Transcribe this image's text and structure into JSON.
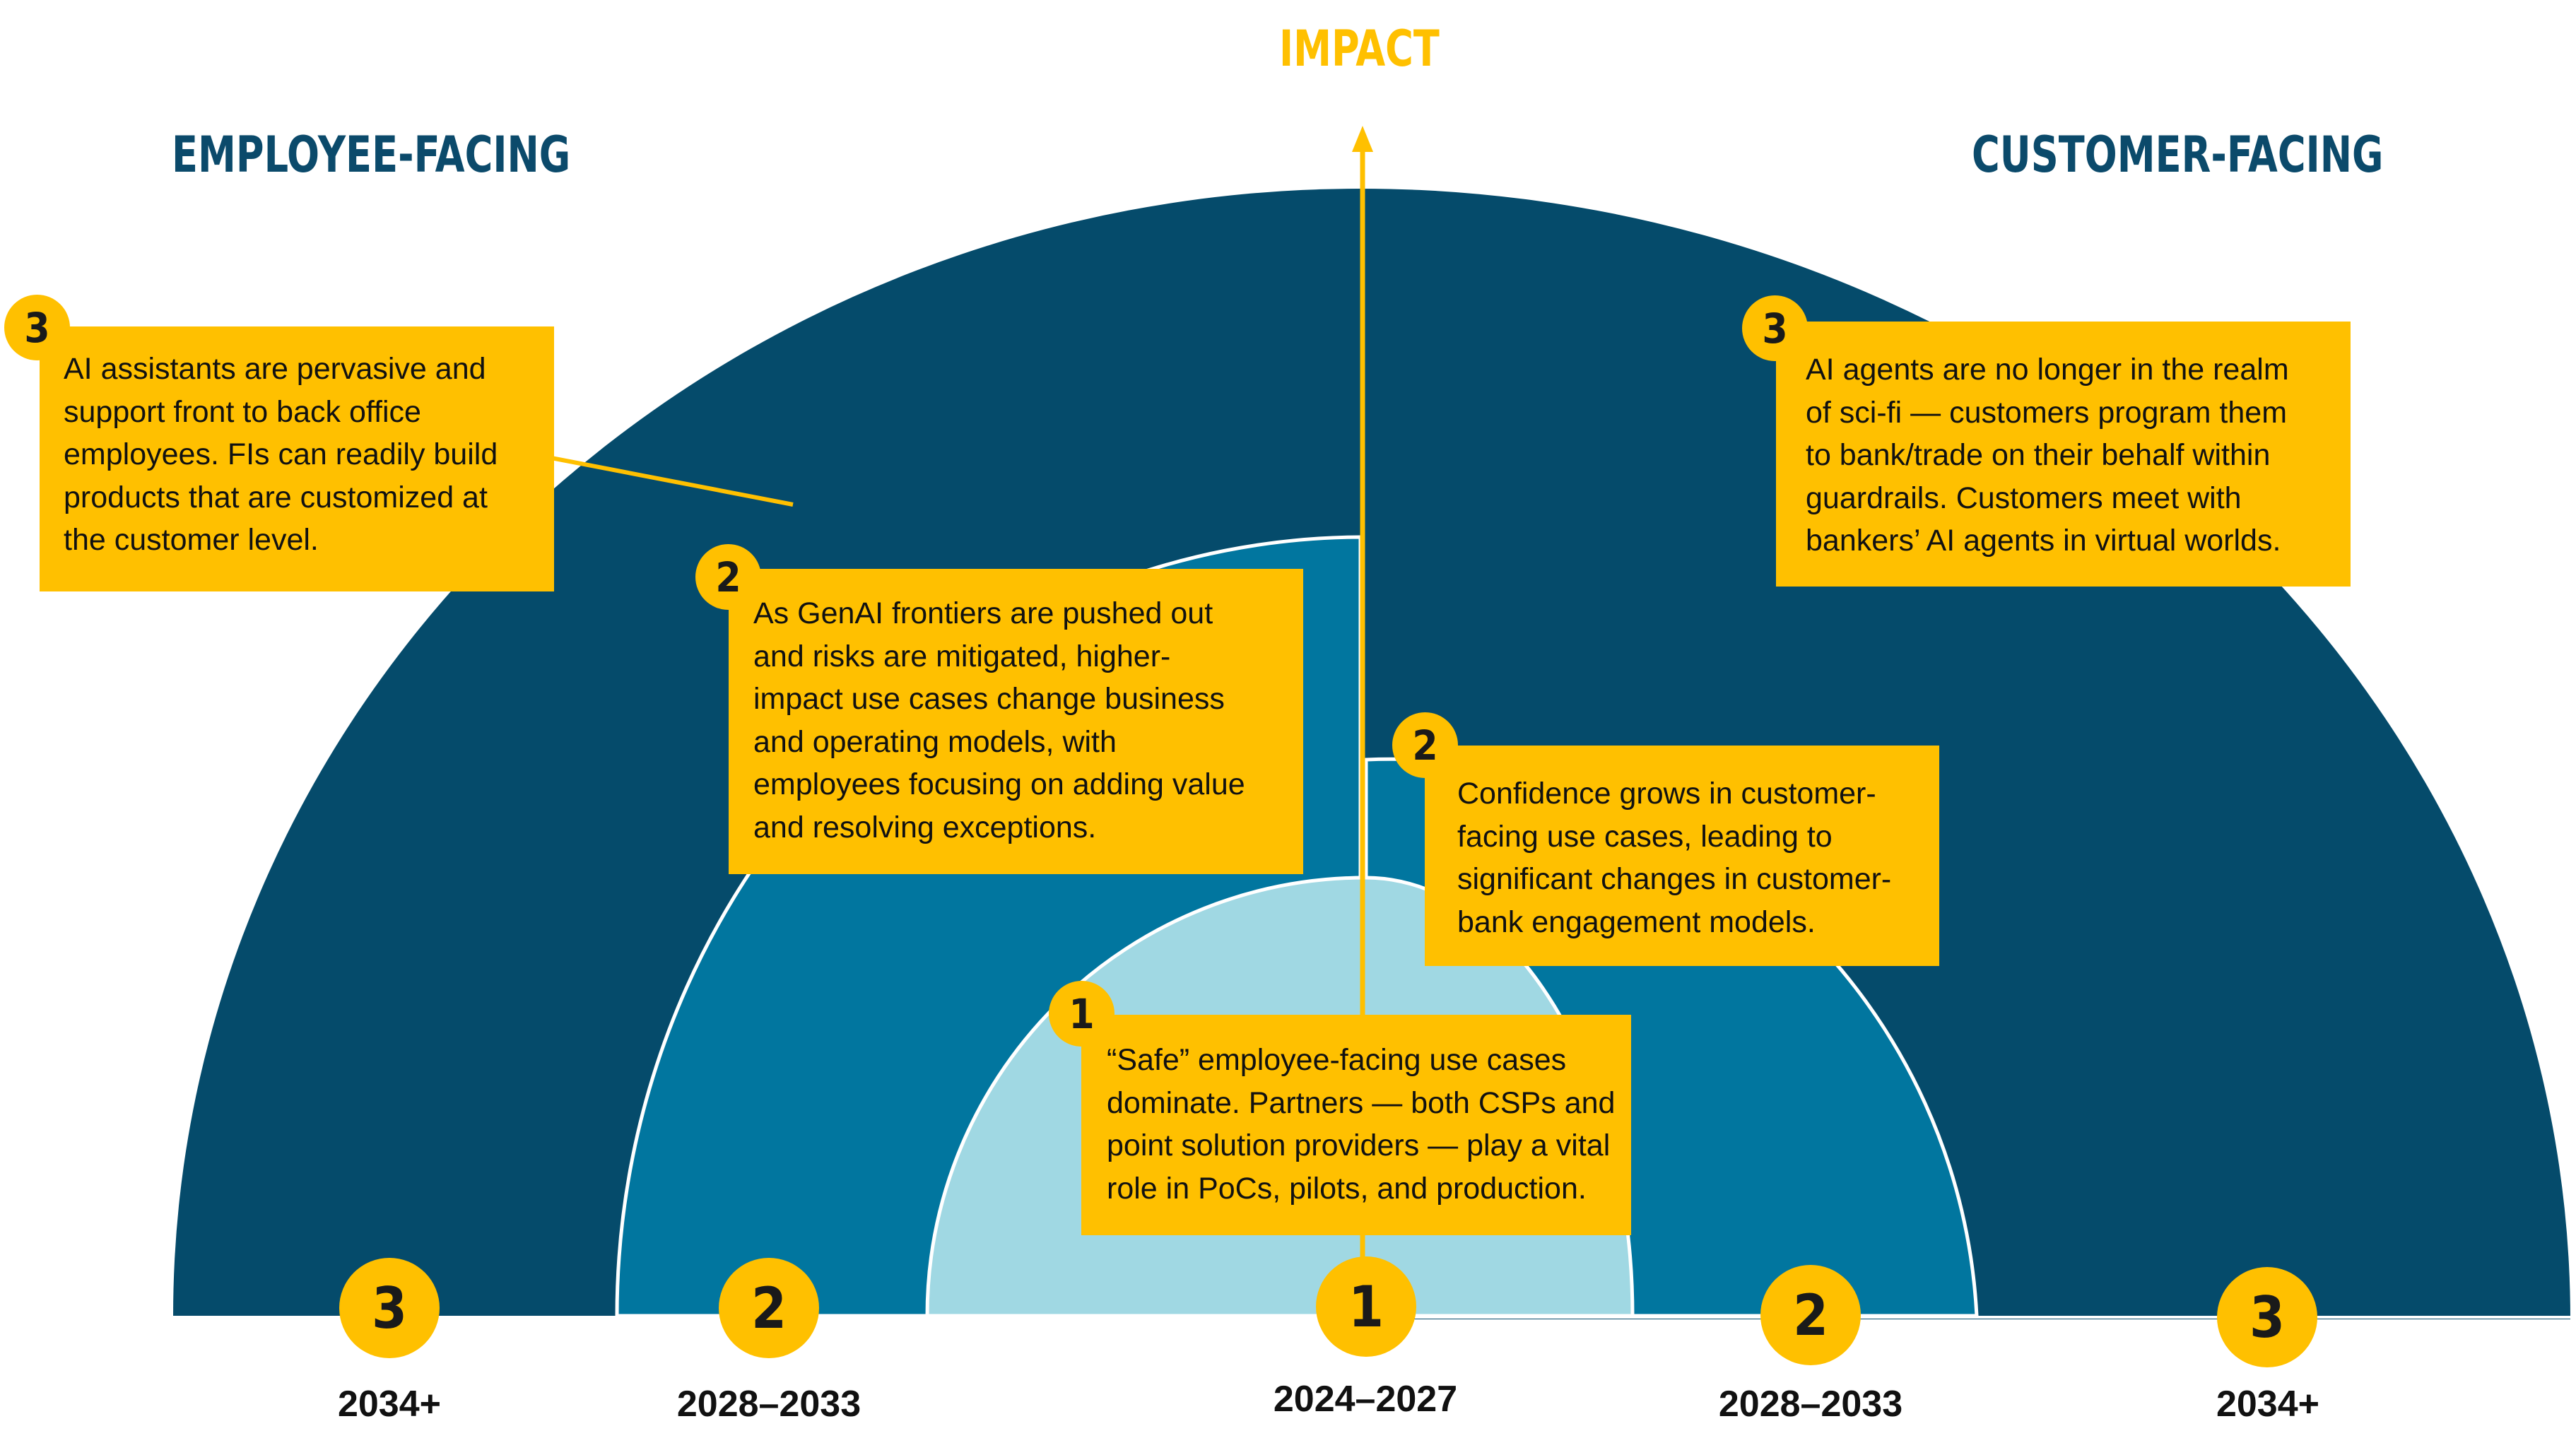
{
  "title": "IMPACT",
  "headers": {
    "left": "EMPLOYEE-FACING",
    "right": "CUSTOMER-FACING"
  },
  "boxes": {
    "employee_3": "AI assistants are pervasive and\nsupport front to back office\nemployees. FIs can readily build\nproducts that are customized at\nthe customer level.",
    "employee_2": "As GenAI frontiers are pushed out\nand risks are mitigated, higher-\nimpact use cases change business\nand operating models, with\nemployees focusing on adding value\nand resolving exceptions.",
    "customer_3": "AI agents are no longer in the realm\nof sci-fi — customers program them\nto bank/trade on their behalf within\nguardrails. Customers meet with\nbankers’ AI agents in virtual worlds.",
    "customer_2": "Confidence grows in customer-\nfacing use cases, leading to\nsignificant changes in customer-\nbank engagement models.",
    "phase_1": "“Safe” employee-facing use cases\ndominate. Partners — both CSPs and\npoint solution providers — play a vital\nrole in PoCs, pilots, and production."
  },
  "badges": {
    "employee_3": "3",
    "employee_2": "2",
    "customer_3": "3",
    "customer_2": "2",
    "phase_1": "1"
  },
  "axis_badges": {
    "left_3": "3",
    "left_2": "2",
    "center_1": "1",
    "right_2": "2",
    "right_3": "3"
  },
  "years": {
    "left_3": "2034+",
    "left_2": "2028–2033",
    "center_1": "2024–2027",
    "right_2": "2028–2033",
    "right_3": "2034+"
  },
  "colors": {
    "ring_outer": "#054B6B",
    "ring_middle": "#01769F",
    "ring_inner": "#A0D8E3",
    "accent": "#FFC000",
    "header": "#0B4A6B"
  }
}
